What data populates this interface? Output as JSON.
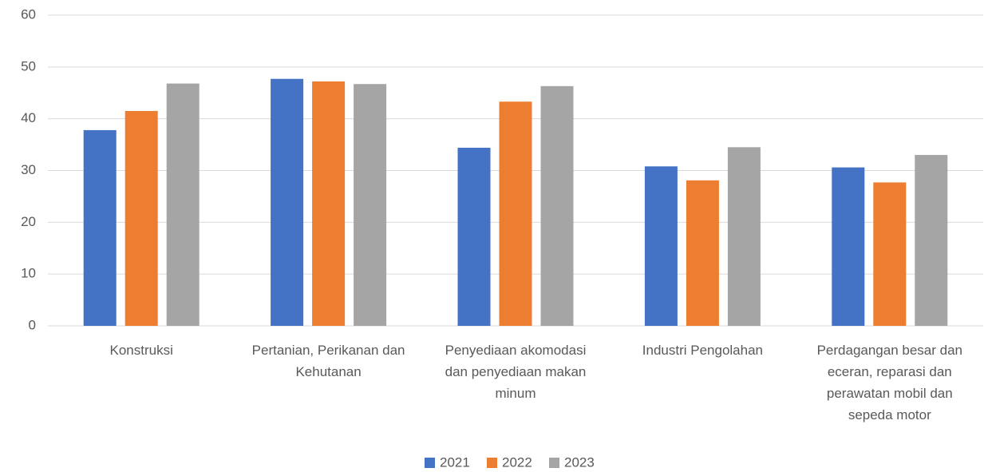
{
  "chart_data": {
    "type": "bar",
    "categories": [
      "Konstruksi",
      "Pertanian, Perikanan dan Kehutanan",
      "Penyediaan akomodasi dan penyediaan makan minum",
      "Industri Pengolahan",
      "Perdagangan besar dan eceran, reparasi dan perawatan mobil dan sepeda motor"
    ],
    "series": [
      {
        "name": "2021",
        "color": "#4472c4",
        "values": [
          37.8,
          47.7,
          34.4,
          30.8,
          30.6
        ]
      },
      {
        "name": "2022",
        "color": "#ed7d31",
        "values": [
          41.5,
          47.2,
          43.3,
          28.1,
          27.7
        ]
      },
      {
        "name": "2023",
        "color": "#a5a5a5",
        "values": [
          46.8,
          46.7,
          46.3,
          34.5,
          33.0
        ]
      }
    ],
    "ylim": [
      0,
      60
    ],
    "yticks": [
      0,
      10,
      20,
      30,
      40,
      50,
      60
    ],
    "grid": true,
    "legend": "bottom"
  }
}
